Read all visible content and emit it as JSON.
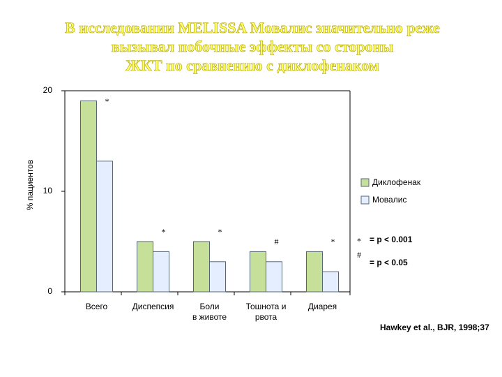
{
  "chart_data": {
    "type": "bar",
    "title": [
      "В исследовании MELISSA Мовалис значительно реже",
      "вызывал побочные эффекты со стороны",
      "ЖКТ по сравнению с диклофенаком"
    ],
    "y_label": "% пациентов",
    "categories": [
      [
        "Всего"
      ],
      [
        "Диспепсия"
      ],
      [
        "Боли",
        "в животе"
      ],
      [
        "Тошнота и",
        "рвота"
      ],
      [
        "Диарея"
      ]
    ],
    "series": [
      {
        "name": "Диклофенак",
        "color": "#c6e09a",
        "values": [
          19,
          5,
          5,
          4,
          4
        ]
      },
      {
        "name": "Мовалис",
        "color": "#e4eeff",
        "values": [
          13,
          4,
          3,
          3,
          2
        ]
      }
    ],
    "significance": [
      "*",
      "*",
      "*",
      "#",
      "*"
    ],
    "notes": [
      {
        "symbol": "*",
        "text": "= p < 0.001"
      },
      {
        "symbol": "#",
        "text": "= p < 0.05"
      }
    ],
    "source": "Hawkey et al., BJR, 1998;37",
    "ylim": [
      0,
      20
    ],
    "yticks": [
      0,
      10,
      20
    ],
    "legend": "right"
  }
}
